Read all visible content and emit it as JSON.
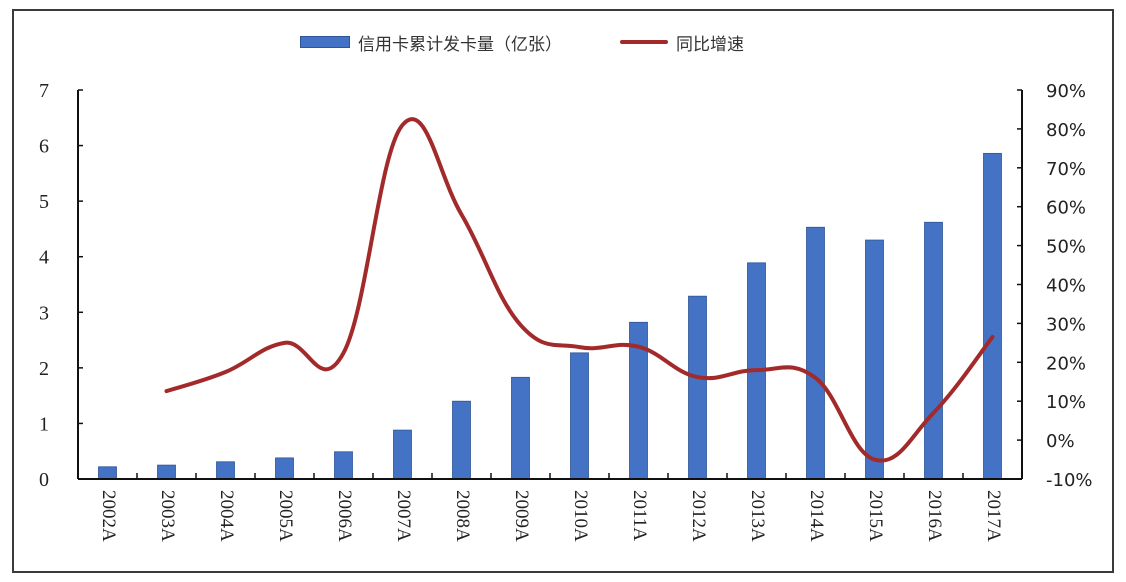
{
  "chart_data": {
    "type": "bar+line",
    "title": "",
    "categories": [
      "2002A",
      "2003A",
      "2004A",
      "2005A",
      "2006A",
      "2007A",
      "2008A",
      "2009A",
      "2010A",
      "2011A",
      "2012A",
      "2013A",
      "2014A",
      "2015A",
      "2016A",
      "2017A"
    ],
    "series": [
      {
        "name": "信用卡累计发卡量（亿张）",
        "type": "bar",
        "axis": "left",
        "color": "#4472C4",
        "values": [
          0.22,
          0.25,
          0.31,
          0.38,
          0.49,
          0.88,
          1.4,
          1.83,
          2.27,
          2.82,
          3.29,
          3.89,
          4.53,
          4.3,
          4.62,
          5.86
        ]
      },
      {
        "name": "同比增速",
        "type": "line",
        "axis": "right",
        "color": "#A32A2A",
        "values": [
          null,
          12.6,
          17.5,
          25.0,
          22.4,
          81.0,
          58.0,
          29.6,
          23.9,
          24.0,
          16.2,
          18.0,
          16.0,
          -5.0,
          7.0,
          26.5
        ],
        "unit": "%"
      }
    ],
    "left_axis": {
      "min": 0,
      "max": 7,
      "ticks": [
        "0",
        "1",
        "2",
        "3",
        "4",
        "5",
        "6",
        "7"
      ]
    },
    "right_axis": {
      "min": -10,
      "max": 90,
      "ticks": [
        "-10%",
        "0%",
        "10%",
        "20%",
        "30%",
        "40%",
        "50%",
        "60%",
        "70%",
        "80%",
        "90%"
      ]
    },
    "xlabel": "",
    "ylabel_left": "",
    "ylabel_right": "",
    "grid": false,
    "legend_position": "top"
  },
  "legend": {
    "bar_label": "信用卡累计发卡量（亿张）",
    "line_label": "同比增速"
  }
}
